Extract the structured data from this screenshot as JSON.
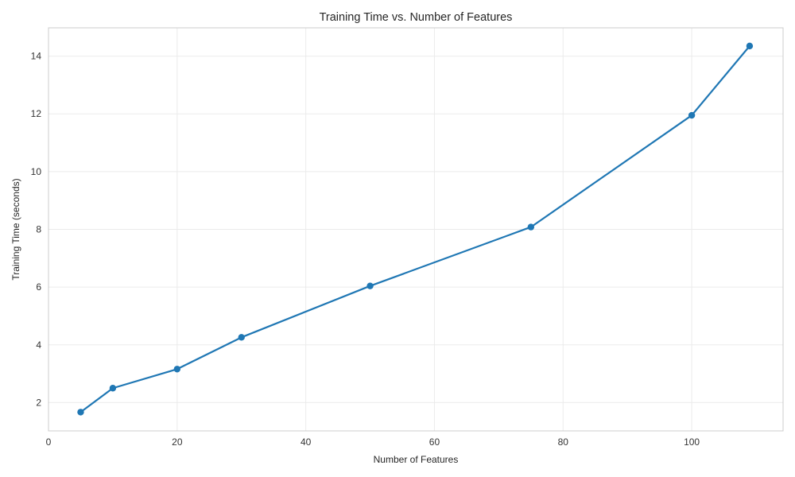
{
  "chart_data": {
    "type": "line",
    "title": "Training Time vs. Number of Features",
    "xlabel": "Number of Features",
    "ylabel": "Training Time (seconds)",
    "xlim": [
      0,
      114.2
    ],
    "ylim": [
      1.02,
      14.98
    ],
    "x_ticks": [
      0,
      20,
      40,
      60,
      80,
      100
    ],
    "y_ticks": [
      2,
      4,
      6,
      8,
      10,
      12,
      14
    ],
    "grid": true,
    "legend": "none",
    "series": [
      {
        "color": "#1f77b4",
        "marker": "circle",
        "x": [
          5,
          10,
          20,
          30,
          50,
          75,
          100,
          109
        ],
        "y": [
          1.67,
          2.5,
          3.16,
          4.26,
          6.04,
          8.08,
          11.95,
          14.35
        ]
      }
    ]
  }
}
